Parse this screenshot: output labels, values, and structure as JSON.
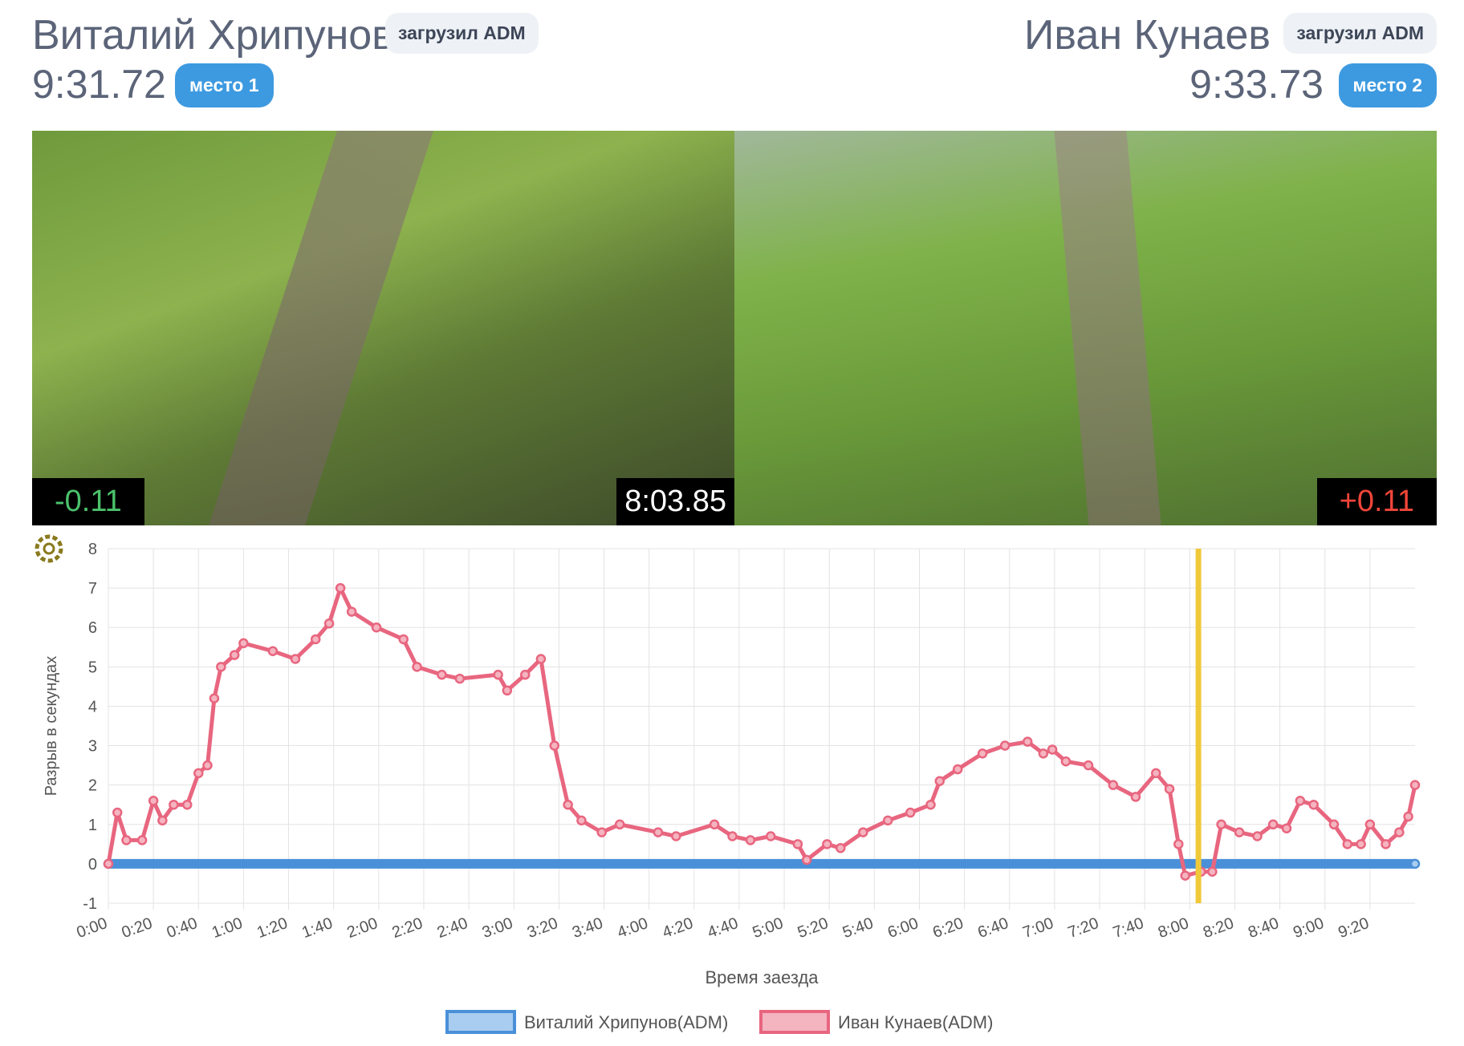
{
  "header": {
    "left": {
      "name": "Виталий Хрипунов",
      "uploader": "загрузил ADM",
      "time": "9:31.72",
      "place": "место 1"
    },
    "right": {
      "name": "Иван Кунаев",
      "uploader": "загрузил ADM",
      "time": "9:33.73",
      "place": "место 2"
    }
  },
  "video": {
    "left_delta": "-0.11",
    "right_delta": "+0.11"
  },
  "chart_data": {
    "type": "line",
    "x_title": "Время заезда",
    "y_title": "Разрыв в секундах",
    "xlim": [
      0,
      580
    ],
    "ylim": [
      -1,
      8
    ],
    "yticks": [
      -1,
      0,
      1,
      2,
      3,
      4,
      5,
      6,
      7,
      8
    ],
    "xticks": [
      {
        "value": 0,
        "label": "0:00"
      },
      {
        "value": 20,
        "label": "0:20"
      },
      {
        "value": 40,
        "label": "0:40"
      },
      {
        "value": 60,
        "label": "1:00"
      },
      {
        "value": 80,
        "label": "1:20"
      },
      {
        "value": 100,
        "label": "1:40"
      },
      {
        "value": 120,
        "label": "2:00"
      },
      {
        "value": 140,
        "label": "2:20"
      },
      {
        "value": 160,
        "label": "2:40"
      },
      {
        "value": 180,
        "label": "3:00"
      },
      {
        "value": 200,
        "label": "3:20"
      },
      {
        "value": 220,
        "label": "3:40"
      },
      {
        "value": 240,
        "label": "4:00"
      },
      {
        "value": 260,
        "label": "4:20"
      },
      {
        "value": 280,
        "label": "4:40"
      },
      {
        "value": 300,
        "label": "5:00"
      },
      {
        "value": 320,
        "label": "5:20"
      },
      {
        "value": 340,
        "label": "5:40"
      },
      {
        "value": 360,
        "label": "6:00"
      },
      {
        "value": 380,
        "label": "6:20"
      },
      {
        "value": 400,
        "label": "6:40"
      },
      {
        "value": 420,
        "label": "7:00"
      },
      {
        "value": 440,
        "label": "7:20"
      },
      {
        "value": 460,
        "label": "7:40"
      },
      {
        "value": 480,
        "label": "8:00"
      },
      {
        "value": 500,
        "label": "8:20"
      },
      {
        "value": 520,
        "label": "8:40"
      },
      {
        "value": 540,
        "label": "9:00"
      },
      {
        "value": 560,
        "label": "9:20"
      }
    ],
    "grid": true,
    "legend": "bottom",
    "current_time": {
      "value": 483.85,
      "label": "8:03.85"
    },
    "series": [
      {
        "name": "Виталий Хрипунов(ADM)",
        "color": "#4a90d9",
        "fill": "#a9cdf0",
        "x": [
          0,
          580
        ],
        "values": [
          0,
          0
        ]
      },
      {
        "name": "Иван Кунаев(ADM)",
        "color": "#e8667f",
        "fill": "#f4b4c0",
        "x": [
          0,
          4,
          8,
          15,
          20,
          24,
          29,
          35,
          40,
          44,
          47,
          50,
          56,
          60,
          73,
          83,
          92,
          98,
          103,
          108,
          119,
          131,
          137,
          148,
          156,
          173,
          177,
          185,
          192,
          198,
          204,
          210,
          219,
          227,
          244,
          252,
          269,
          277,
          285,
          294,
          306,
          310,
          319,
          325,
          335,
          346,
          356,
          365,
          369,
          377,
          388,
          398,
          408,
          415,
          419,
          425,
          435,
          446,
          456,
          465,
          471,
          475,
          478,
          485,
          490,
          494,
          502,
          510,
          517,
          523,
          529,
          535,
          544,
          550,
          556,
          560,
          567,
          573,
          577,
          580
        ],
        "values": [
          0,
          1.3,
          0.6,
          0.6,
          1.6,
          1.1,
          1.5,
          1.5,
          2.3,
          2.5,
          4.2,
          5.0,
          5.3,
          5.6,
          5.4,
          5.2,
          5.7,
          6.1,
          7.0,
          6.4,
          6.0,
          5.7,
          5.0,
          4.8,
          4.7,
          4.8,
          4.4,
          4.8,
          5.2,
          3.0,
          1.5,
          1.1,
          0.8,
          1.0,
          0.8,
          0.7,
          1.0,
          0.7,
          0.6,
          0.7,
          0.5,
          0.1,
          0.5,
          0.4,
          0.8,
          1.1,
          1.3,
          1.5,
          2.1,
          2.4,
          2.8,
          3.0,
          3.1,
          2.8,
          2.9,
          2.6,
          2.5,
          2.0,
          1.7,
          2.3,
          1.9,
          0.5,
          -0.3,
          -0.2,
          -0.2,
          1.0,
          0.8,
          0.7,
          1.0,
          0.9,
          1.6,
          1.5,
          1.0,
          0.5,
          0.5,
          1.0,
          0.5,
          0.8,
          1.2,
          2.0
        ]
      }
    ]
  }
}
